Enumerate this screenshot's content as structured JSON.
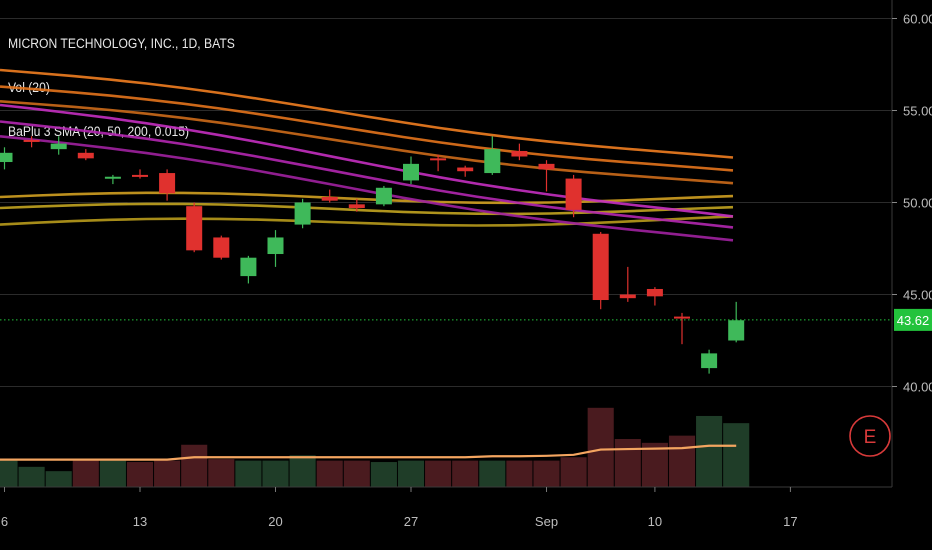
{
  "chart_data": {
    "type": "candlestick",
    "title": "MICRON TECHNOLOGY, INC., 1D, BATS",
    "legend": [
      "Vol (20)",
      "BaPlu 3 SMA (20, 50, 200, 0.015)"
    ],
    "x_tick_labels": [
      "6",
      "13",
      "20",
      "27",
      "Sep",
      "10",
      "17"
    ],
    "y_tick_labels": [
      "60.00",
      "55.00",
      "50.00",
      "45.00",
      "40.00"
    ],
    "ylim": [
      35.5,
      60.5
    ],
    "last_price_label": "43.62",
    "last_price": 43.62,
    "colors": {
      "up": "#3fb95a",
      "down": "#e0312e",
      "last_price": "#23c33c"
    },
    "candles": [
      {
        "o": 52.2,
        "h": 53.0,
        "l": 51.8,
        "c": 52.7
      },
      {
        "o": 53.4,
        "h": 53.6,
        "l": 53.0,
        "c": 53.3
      },
      {
        "o": 52.9,
        "h": 53.6,
        "l": 52.6,
        "c": 53.2
      },
      {
        "o": 52.7,
        "h": 52.9,
        "l": 52.3,
        "c": 52.4
      },
      {
        "o": 51.3,
        "h": 51.5,
        "l": 51.0,
        "c": 51.4
      },
      {
        "o": 51.5,
        "h": 51.8,
        "l": 51.3,
        "c": 51.4
      },
      {
        "o": 51.6,
        "h": 51.8,
        "l": 50.1,
        "c": 50.5
      },
      {
        "o": 49.8,
        "h": 50.0,
        "l": 47.3,
        "c": 47.4
      },
      {
        "o": 48.1,
        "h": 48.2,
        "l": 46.9,
        "c": 47.0
      },
      {
        "o": 46.0,
        "h": 47.1,
        "l": 45.6,
        "c": 47.0
      },
      {
        "o": 47.2,
        "h": 48.5,
        "l": 46.5,
        "c": 48.1
      },
      {
        "o": 48.8,
        "h": 50.2,
        "l": 48.6,
        "c": 50.0
      },
      {
        "o": 50.3,
        "h": 50.7,
        "l": 50.0,
        "c": 50.1
      },
      {
        "o": 49.9,
        "h": 50.2,
        "l": 49.5,
        "c": 49.7
      },
      {
        "o": 49.9,
        "h": 50.9,
        "l": 49.8,
        "c": 50.8
      },
      {
        "o": 51.2,
        "h": 52.5,
        "l": 51.0,
        "c": 52.1
      },
      {
        "o": 52.4,
        "h": 52.6,
        "l": 51.7,
        "c": 52.3
      },
      {
        "o": 51.9,
        "h": 52.0,
        "l": 51.4,
        "c": 51.7
      },
      {
        "o": 51.6,
        "h": 53.6,
        "l": 51.5,
        "c": 52.9
      },
      {
        "o": 52.8,
        "h": 53.2,
        "l": 52.3,
        "c": 52.5
      },
      {
        "o": 52.1,
        "h": 52.3,
        "l": 50.6,
        "c": 51.8
      },
      {
        "o": 51.3,
        "h": 51.5,
        "l": 49.2,
        "c": 49.6
      },
      {
        "o": 48.3,
        "h": 48.4,
        "l": 44.2,
        "c": 44.7
      },
      {
        "o": 45.0,
        "h": 46.5,
        "l": 44.6,
        "c": 44.8
      },
      {
        "o": 45.3,
        "h": 45.4,
        "l": 44.4,
        "c": 44.9
      },
      {
        "o": 43.8,
        "h": 44.0,
        "l": 42.3,
        "c": 43.7
      },
      {
        "o": 41.0,
        "h": 42.0,
        "l": 40.7,
        "c": 41.8
      },
      {
        "o": 42.5,
        "h": 44.6,
        "l": 42.4,
        "c": 43.6
      }
    ],
    "volume_bars": [
      {
        "v": 0.55,
        "dir": "up"
      },
      {
        "v": 0.42,
        "dir": "up"
      },
      {
        "v": 0.33,
        "dir": "up"
      },
      {
        "v": 0.55,
        "dir": "down"
      },
      {
        "v": 0.55,
        "dir": "up"
      },
      {
        "v": 0.52,
        "dir": "down"
      },
      {
        "v": 0.55,
        "dir": "down"
      },
      {
        "v": 0.88,
        "dir": "down"
      },
      {
        "v": 0.58,
        "dir": "down"
      },
      {
        "v": 0.55,
        "dir": "up"
      },
      {
        "v": 0.55,
        "dir": "up"
      },
      {
        "v": 0.66,
        "dir": "up"
      },
      {
        "v": 0.55,
        "dir": "down"
      },
      {
        "v": 0.55,
        "dir": "down"
      },
      {
        "v": 0.52,
        "dir": "up"
      },
      {
        "v": 0.55,
        "dir": "up"
      },
      {
        "v": 0.55,
        "dir": "down"
      },
      {
        "v": 0.55,
        "dir": "down"
      },
      {
        "v": 0.55,
        "dir": "up"
      },
      {
        "v": 0.55,
        "dir": "down"
      },
      {
        "v": 0.55,
        "dir": "down"
      },
      {
        "v": 0.62,
        "dir": "down"
      },
      {
        "v": 1.65,
        "dir": "down"
      },
      {
        "v": 1.0,
        "dir": "down"
      },
      {
        "v": 0.92,
        "dir": "down"
      },
      {
        "v": 1.07,
        "dir": "down"
      },
      {
        "v": 1.48,
        "dir": "up"
      },
      {
        "v": 1.33,
        "dir": "up"
      }
    ],
    "volume_ma": [
      0.57,
      0.57,
      0.57,
      0.57,
      0.57,
      0.57,
      0.57,
      0.62,
      0.62,
      0.62,
      0.62,
      0.62,
      0.62,
      0.62,
      0.62,
      0.62,
      0.62,
      0.62,
      0.64,
      0.64,
      0.65,
      0.67,
      0.78,
      0.79,
      0.8,
      0.81,
      0.86,
      0.86
    ],
    "sma_lines": [
      {
        "color": "#f07d20",
        "start": 57.2,
        "end": 52.3
      },
      {
        "color": "#e3731c",
        "start": 56.3,
        "end": 51.6
      },
      {
        "color": "#cc6a1a",
        "start": 55.5,
        "end": 50.9
      },
      {
        "color": "#d0a021",
        "start": 50.3,
        "end": 50.2
      },
      {
        "color": "#c2a420",
        "start": 49.7,
        "end": 49.6
      },
      {
        "color": "#b89b1c",
        "start": 48.8,
        "end": 49.1
      },
      {
        "color": "#c42fc0",
        "start": 55.3,
        "end": 49.1
      },
      {
        "color": "#b327b0",
        "start": 54.4,
        "end": 48.5
      },
      {
        "color": "#a021a0",
        "start": 53.6,
        "end": 47.8
      }
    ],
    "badge_letter": "E"
  }
}
